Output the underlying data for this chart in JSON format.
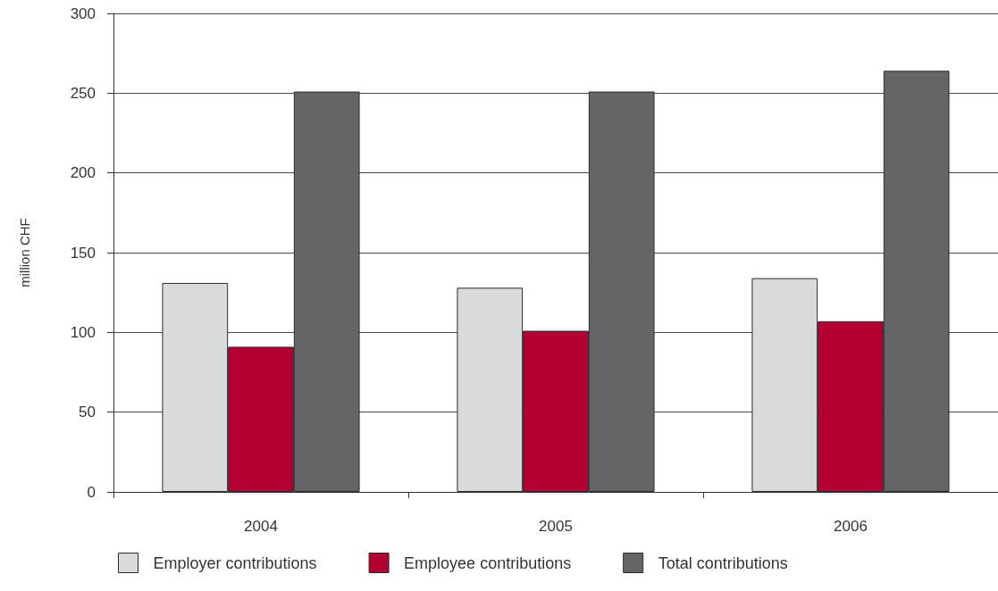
{
  "chart_data": {
    "type": "bar",
    "categories": [
      "2004",
      "2005",
      "2006"
    ],
    "ylabel": "million CHF",
    "ylim": [
      0,
      300
    ],
    "yticks": [
      0,
      50,
      100,
      150,
      200,
      250,
      300
    ],
    "grid": "y",
    "legend": "bottom",
    "series": [
      {
        "name": "Employer contributions",
        "color": "#d9dadc",
        "values": [
          131,
          128,
          134
        ]
      },
      {
        "name": "Employee contributions",
        "color": "#b20033",
        "values": [
          91,
          101,
          107
        ]
      },
      {
        "name": "Total contributions",
        "color": "#646567",
        "values": [
          251,
          251,
          264
        ]
      }
    ]
  }
}
